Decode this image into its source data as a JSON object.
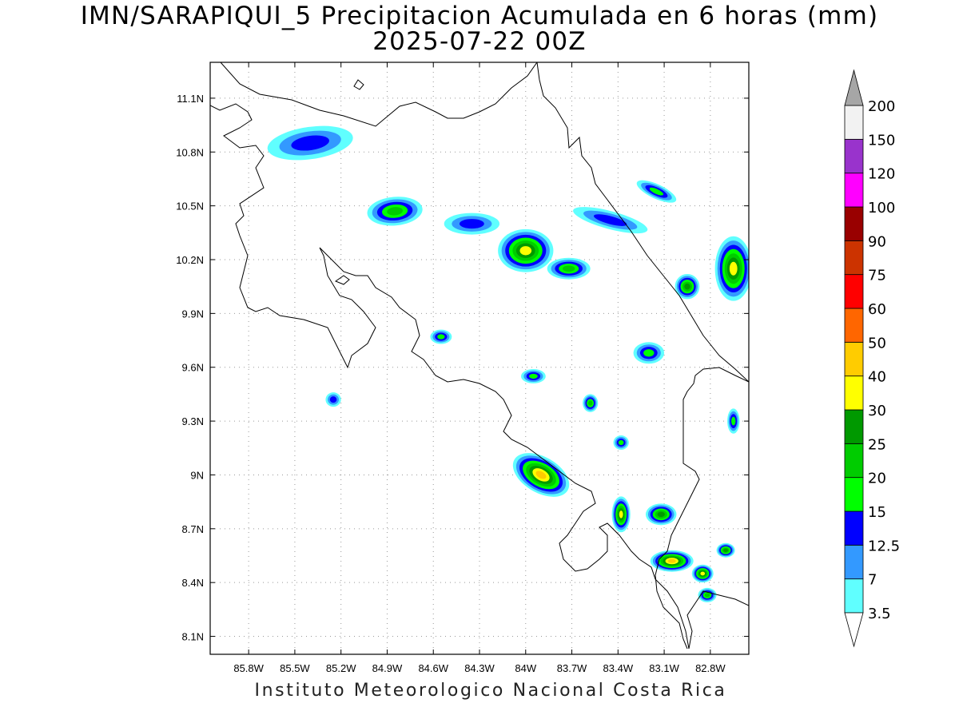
{
  "header": {
    "title": "IMN/SARAPIQUI_5 Precipitacion Acumulada en 6 horas (mm)",
    "subtitle": "2025-07-22 00Z"
  },
  "footer": {
    "text": "Instituto Meteorologico Nacional Costa Rica"
  },
  "map": {
    "lon_range": [
      -86.05,
      -82.55
    ],
    "lat_range": [
      8.0,
      11.3
    ],
    "lon_ticks": [
      {
        "value": -85.8,
        "label": "85.8W"
      },
      {
        "value": -85.5,
        "label": "85.5W"
      },
      {
        "value": -85.2,
        "label": "85.2W"
      },
      {
        "value": -84.9,
        "label": "84.9W"
      },
      {
        "value": -84.6,
        "label": "84.6W"
      },
      {
        "value": -84.3,
        "label": "84.3W"
      },
      {
        "value": -84.0,
        "label": "84W"
      },
      {
        "value": -83.7,
        "label": "83.7W"
      },
      {
        "value": -83.4,
        "label": "83.4W"
      },
      {
        "value": -83.1,
        "label": "83.1W"
      },
      {
        "value": -82.8,
        "label": "82.8W"
      }
    ],
    "lat_ticks": [
      {
        "value": 11.1,
        "label": "11.1N"
      },
      {
        "value": 10.8,
        "label": "10.8N"
      },
      {
        "value": 10.5,
        "label": "10.5N"
      },
      {
        "value": 10.2,
        "label": "10.2N"
      },
      {
        "value": 9.9,
        "label": "9.9N"
      },
      {
        "value": 9.6,
        "label": "9.6N"
      },
      {
        "value": 9.3,
        "label": "9.3N"
      },
      {
        "value": 9.0,
        "label": "9N"
      },
      {
        "value": 8.7,
        "label": "8.7N"
      },
      {
        "value": 8.4,
        "label": "8.4N"
      },
      {
        "value": 8.1,
        "label": "8.1N"
      }
    ],
    "grid": true,
    "colors": {
      "border": "#000000",
      "grid": "#999999",
      "coast": "#000000"
    }
  },
  "colorbar": {
    "unit": "mm",
    "levels": [
      {
        "label": "3.5",
        "color": "#60ffff"
      },
      {
        "label": "7",
        "color": "#3399ff"
      },
      {
        "label": "12.5",
        "color": "#0000ff"
      },
      {
        "label": "15",
        "color": "#00ff00"
      },
      {
        "label": "20",
        "color": "#00cc00"
      },
      {
        "label": "25",
        "color": "#009900"
      },
      {
        "label": "30",
        "color": "#ffff00"
      },
      {
        "label": "40",
        "color": "#ffcc00"
      },
      {
        "label": "50",
        "color": "#ff6600"
      },
      {
        "label": "60",
        "color": "#ff0000"
      },
      {
        "label": "75",
        "color": "#cc3300"
      },
      {
        "label": "90",
        "color": "#990000"
      },
      {
        "label": "100",
        "color": "#ff00ff"
      },
      {
        "label": "120",
        "color": "#9933cc"
      },
      {
        "label": "150",
        "color": "#f2f2f2"
      },
      {
        "label": "200",
        "color": "#a6a6a6"
      }
    ]
  },
  "precip_cells": [
    {
      "lon": -85.4,
      "lat": 10.85,
      "a": 0.28,
      "b": 0.09,
      "rot": -8,
      "level": 2
    },
    {
      "lon": -84.85,
      "lat": 10.47,
      "a": 0.18,
      "b": 0.08,
      "rot": -5,
      "level": 4
    },
    {
      "lon": -84.35,
      "lat": 10.4,
      "a": 0.18,
      "b": 0.06,
      "rot": 0,
      "level": 2
    },
    {
      "lon": -84.0,
      "lat": 10.25,
      "a": 0.18,
      "b": 0.12,
      "rot": 0,
      "level": 6
    },
    {
      "lon": -83.72,
      "lat": 10.15,
      "a": 0.14,
      "b": 0.06,
      "rot": 0,
      "level": 4
    },
    {
      "lon": -83.45,
      "lat": 10.42,
      "a": 0.25,
      "b": 0.05,
      "rot": 15,
      "level": 2
    },
    {
      "lon": -83.15,
      "lat": 10.58,
      "a": 0.14,
      "b": 0.04,
      "rot": 25,
      "level": 3
    },
    {
      "lon": -82.65,
      "lat": 10.15,
      "a": 0.12,
      "b": 0.18,
      "rot": 0,
      "level": 6
    },
    {
      "lon": -82.95,
      "lat": 10.05,
      "a": 0.08,
      "b": 0.07,
      "rot": 0,
      "level": 5
    },
    {
      "lon": -83.2,
      "lat": 9.68,
      "a": 0.1,
      "b": 0.06,
      "rot": 0,
      "level": 3
    },
    {
      "lon": -84.55,
      "lat": 9.77,
      "a": 0.07,
      "b": 0.04,
      "rot": 0,
      "level": 3
    },
    {
      "lon": -83.95,
      "lat": 9.55,
      "a": 0.08,
      "b": 0.04,
      "rot": 0,
      "level": 3
    },
    {
      "lon": -83.58,
      "lat": 9.4,
      "a": 0.05,
      "b": 0.05,
      "rot": 0,
      "level": 4
    },
    {
      "lon": -85.25,
      "lat": 9.42,
      "a": 0.05,
      "b": 0.04,
      "rot": 0,
      "level": 2
    },
    {
      "lon": -83.9,
      "lat": 9.0,
      "a": 0.2,
      "b": 0.1,
      "rot": 30,
      "level": 7
    },
    {
      "lon": -83.38,
      "lat": 8.78,
      "a": 0.06,
      "b": 0.1,
      "rot": 0,
      "level": 6
    },
    {
      "lon": -83.12,
      "lat": 8.78,
      "a": 0.1,
      "b": 0.06,
      "rot": 0,
      "level": 5
    },
    {
      "lon": -83.05,
      "lat": 8.52,
      "a": 0.14,
      "b": 0.06,
      "rot": 0,
      "level": 7
    },
    {
      "lon": -82.85,
      "lat": 8.45,
      "a": 0.07,
      "b": 0.05,
      "rot": 0,
      "level": 6
    },
    {
      "lon": -82.7,
      "lat": 8.58,
      "a": 0.06,
      "b": 0.04,
      "rot": 0,
      "level": 5
    },
    {
      "lon": -82.82,
      "lat": 8.33,
      "a": 0.06,
      "b": 0.04,
      "rot": 0,
      "level": 4
    },
    {
      "lon": -83.38,
      "lat": 9.18,
      "a": 0.05,
      "b": 0.04,
      "rot": 0,
      "level": 3
    },
    {
      "lon": -82.65,
      "lat": 9.3,
      "a": 0.04,
      "b": 0.07,
      "rot": 0,
      "level": 3
    }
  ]
}
